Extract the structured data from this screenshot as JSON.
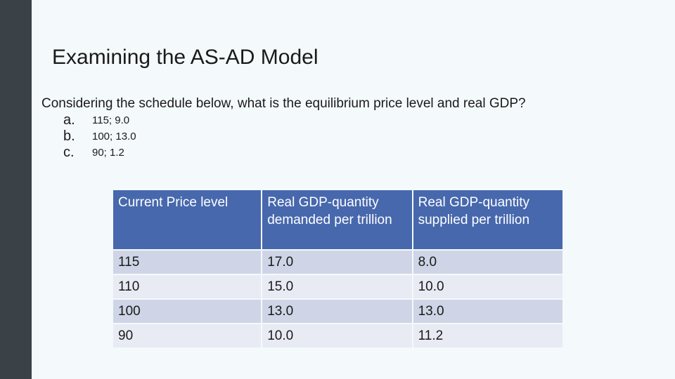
{
  "slide": {
    "title": "Examining the AS-AD Model",
    "question": "Considering the schedule below, what is the equilibrium price level and real GDP?",
    "options": [
      {
        "letter": "a.",
        "text": "115; 9.0"
      },
      {
        "letter": "b.",
        "text": "100; 13.0"
      },
      {
        "letter": "c.",
        "text": "90; 1.2"
      }
    ]
  },
  "table": {
    "headers": [
      "Current Price level",
      "Real GDP-quantity demanded per trillion",
      "Real GDP-quantity supplied per trillion"
    ],
    "rows": [
      [
        "115",
        "17.0",
        "8.0"
      ],
      [
        "110",
        "15.0",
        "10.0"
      ],
      [
        "100",
        "13.0",
        "13.0"
      ],
      [
        "90",
        "10.0",
        "11.2"
      ]
    ]
  },
  "colors": {
    "left_bar": "#3b4247",
    "background": "#f4f9fc",
    "header_fill": "#4768ad",
    "row_odd": "#cfd5e6",
    "row_even": "#e8ebf3"
  }
}
